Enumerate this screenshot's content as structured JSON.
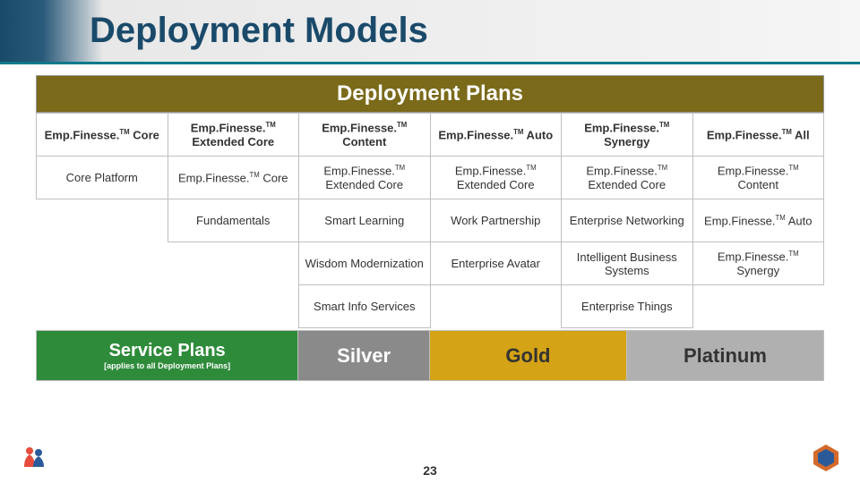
{
  "page": {
    "title": "Deployment Models",
    "number": "23"
  },
  "deployment": {
    "header": "Deployment Plans",
    "brand": "Emp.Finesse.",
    "tm": "TM",
    "columns": [
      "Core",
      "Extended Core",
      "Content",
      "Auto",
      "Synergy",
      "All"
    ],
    "rows": [
      [
        "Core Platform",
        "Core",
        "Extended Core",
        "Extended Core",
        "Extended Core",
        "Content"
      ],
      [
        "",
        "Fundamentals",
        "Smart Learning",
        "Work Partnership",
        "Enterprise Networking",
        "Auto"
      ],
      [
        "",
        "",
        "Wisdom Modernization",
        "Enterprise Avatar",
        "Intelligent Business Systems",
        "Synergy"
      ],
      [
        "",
        "",
        "Smart Info Services",
        "",
        "Enterprise Things",
        ""
      ]
    ],
    "brandedSuffixes": [
      "Core",
      "Extended Core",
      "Content",
      "Auto",
      "Synergy",
      "All"
    ]
  },
  "service": {
    "title": "Service Plans",
    "subtitle": "[applies to all Deployment Plans]",
    "tiers": [
      "Silver",
      "Gold",
      "Platinum"
    ]
  },
  "style": {
    "colors": {
      "banner_accent": "#097a8c",
      "title_text": "#1a4a6a",
      "deploy_header_bg": "#7a6a1a",
      "cell_border": "#bfbfbf",
      "service_green": "#2e8b3a",
      "silver_bg": "#8a8a8a",
      "gold_bg": "#d4a316",
      "platinum_bg": "#b0b0b0"
    },
    "fonts": {
      "title_size_pt": 30,
      "deploy_header_size_pt": 18,
      "cell_size_pt": 10,
      "tier_size_pt": 16
    }
  }
}
